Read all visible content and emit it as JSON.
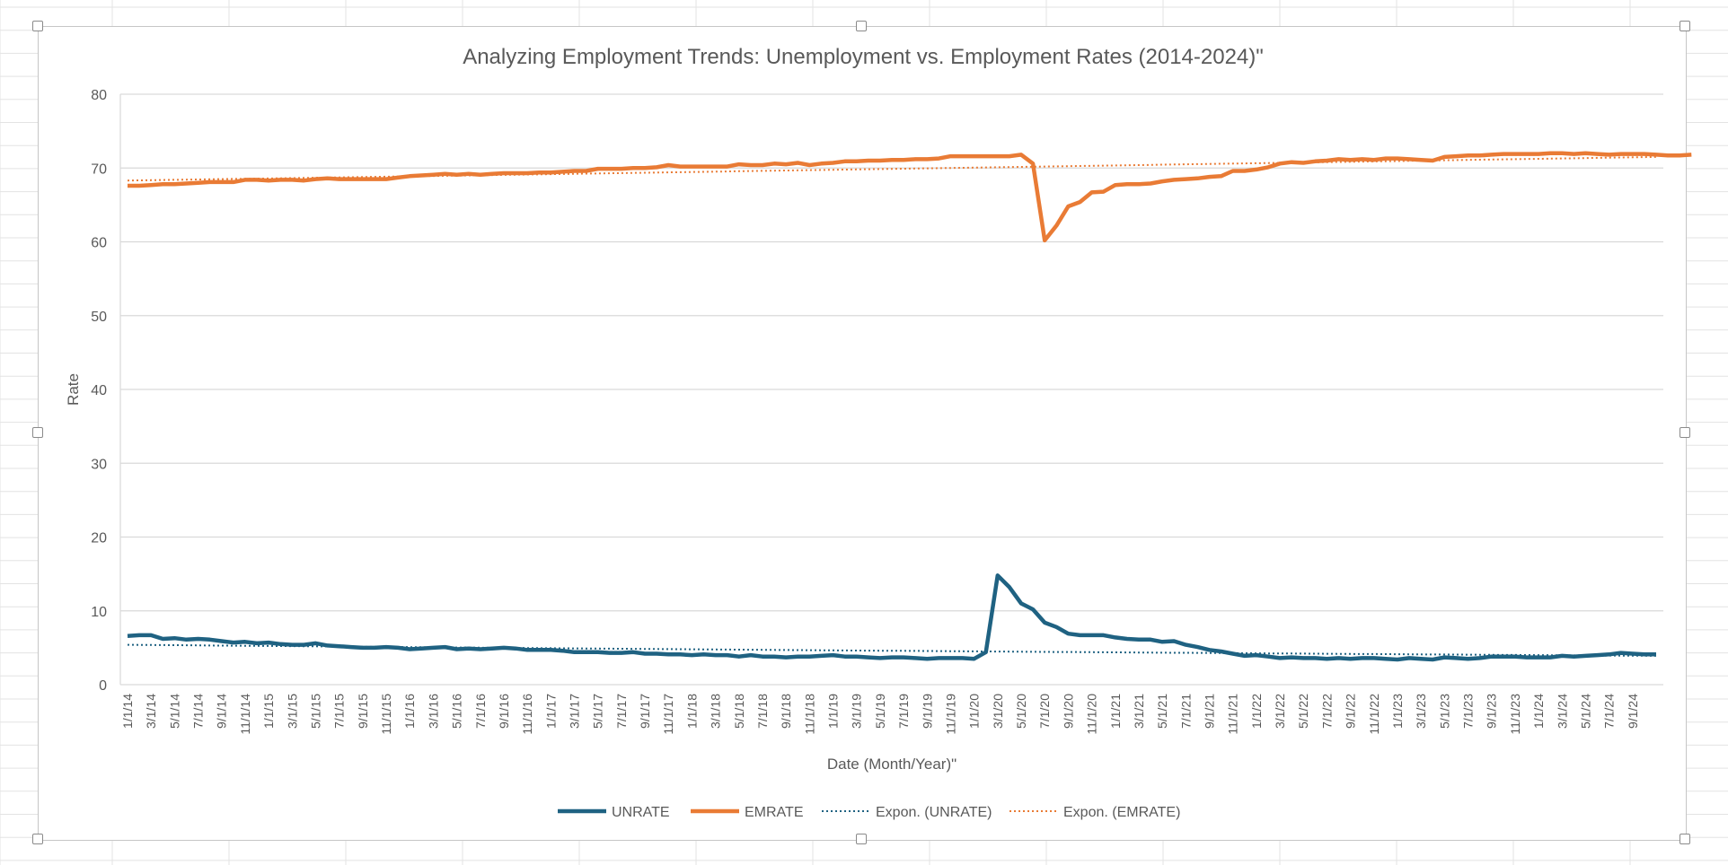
{
  "chart_data": {
    "type": "line",
    "title": "Analyzing Employment Trends: Unemployment vs. Employment Rates (2014-2024)\"",
    "xlabel": "Date (Month/Year)\"",
    "ylabel": "Rate",
    "ylim": [
      0,
      80
    ],
    "yticks": [
      "0",
      "10",
      "20",
      "30",
      "40",
      "50",
      "60",
      "70",
      "80"
    ],
    "grid": "horizontal",
    "legend_position": "bottom",
    "xtick_labels": [
      "1/1/14",
      "3/1/14",
      "5/1/14",
      "7/1/14",
      "9/1/14",
      "11/1/14",
      "1/1/15",
      "3/1/15",
      "5/1/15",
      "7/1/15",
      "9/1/15",
      "11/1/15",
      "1/1/16",
      "3/1/16",
      "5/1/16",
      "7/1/16",
      "9/1/16",
      "11/1/16",
      "1/1/17",
      "3/1/17",
      "5/1/17",
      "7/1/17",
      "9/1/17",
      "11/1/17",
      "1/1/18",
      "3/1/18",
      "5/1/18",
      "7/1/18",
      "9/1/18",
      "11/1/18",
      "1/1/19",
      "3/1/19",
      "5/1/19",
      "7/1/19",
      "9/1/19",
      "11/1/19",
      "1/1/20",
      "3/1/20",
      "5/1/20",
      "7/1/20",
      "9/1/20",
      "11/1/20",
      "1/1/21",
      "3/1/21",
      "5/1/21",
      "7/1/21",
      "9/1/21",
      "11/1/21",
      "1/1/22",
      "3/1/22",
      "5/1/22",
      "7/1/22",
      "9/1/22",
      "11/1/22",
      "1/1/23",
      "3/1/23",
      "5/1/23",
      "7/1/23",
      "9/1/23",
      "11/1/23",
      "1/1/24",
      "3/1/24",
      "5/1/24",
      "7/1/24",
      "9/1/24"
    ],
    "series": [
      {
        "name": "UNRATE",
        "color": "#1f6282",
        "style": "solid",
        "values": [
          6.6,
          6.7,
          6.7,
          6.2,
          6.3,
          6.1,
          6.2,
          6.1,
          5.9,
          5.7,
          5.8,
          5.6,
          5.7,
          5.5,
          5.4,
          5.4,
          5.6,
          5.3,
          5.2,
          5.1,
          5.0,
          5.0,
          5.1,
          5.0,
          4.8,
          4.9,
          5.0,
          5.1,
          4.8,
          4.9,
          4.8,
          4.9,
          5.0,
          4.9,
          4.7,
          4.7,
          4.7,
          4.6,
          4.4,
          4.4,
          4.4,
          4.3,
          4.3,
          4.4,
          4.2,
          4.2,
          4.1,
          4.1,
          4.0,
          4.1,
          4.0,
          4.0,
          3.8,
          4.0,
          3.8,
          3.8,
          3.7,
          3.8,
          3.8,
          3.9,
          4.0,
          3.8,
          3.8,
          3.7,
          3.6,
          3.7,
          3.7,
          3.6,
          3.5,
          3.6,
          3.6,
          3.6,
          3.5,
          4.4,
          14.8,
          13.2,
          11.0,
          10.2,
          8.4,
          7.8,
          6.9,
          6.7,
          6.7,
          6.7,
          6.4,
          6.2,
          6.1,
          6.1,
          5.8,
          5.9,
          5.4,
          5.1,
          4.7,
          4.5,
          4.2,
          3.9,
          4.0,
          3.8,
          3.6,
          3.7,
          3.6,
          3.6,
          3.5,
          3.6,
          3.5,
          3.6,
          3.6,
          3.5,
          3.4,
          3.6,
          3.5,
          3.4,
          3.7,
          3.6,
          3.5,
          3.6,
          3.8,
          3.8,
          3.8,
          3.7,
          3.7,
          3.7,
          3.9,
          3.8,
          3.9,
          4.0,
          4.1,
          4.3,
          4.2,
          4.1,
          4.1
        ],
        "trendline": {
          "name": "Expon. (UNRATE)",
          "style": "dotted",
          "start": 5.4,
          "end": 3.9
        }
      },
      {
        "name": "EMRATE",
        "color": "#e97b35",
        "style": "solid",
        "values": [
          67.6,
          67.6,
          67.7,
          67.8,
          67.8,
          67.9,
          68.0,
          68.1,
          68.1,
          68.1,
          68.4,
          68.4,
          68.3,
          68.4,
          68.4,
          68.3,
          68.5,
          68.6,
          68.5,
          68.5,
          68.5,
          68.5,
          68.5,
          68.7,
          68.9,
          69.0,
          69.1,
          69.2,
          69.1,
          69.2,
          69.1,
          69.2,
          69.3,
          69.3,
          69.3,
          69.4,
          69.4,
          69.5,
          69.6,
          69.6,
          69.9,
          69.9,
          69.9,
          70.0,
          70.0,
          70.1,
          70.4,
          70.2,
          70.2,
          70.2,
          70.2,
          70.2,
          70.5,
          70.4,
          70.4,
          70.6,
          70.5,
          70.7,
          70.4,
          70.6,
          70.7,
          70.9,
          70.9,
          71.0,
          71.0,
          71.1,
          71.1,
          71.2,
          71.2,
          71.3,
          71.6,
          71.6,
          71.6,
          71.6,
          71.6,
          71.6,
          71.8,
          70.6,
          60.2,
          62.2,
          64.8,
          65.4,
          66.7,
          66.8,
          67.7,
          67.8,
          67.8,
          67.9,
          68.2,
          68.4,
          68.5,
          68.6,
          68.8,
          68.9,
          69.6,
          69.6,
          69.8,
          70.1,
          70.6,
          70.8,
          70.7,
          70.9,
          71.0,
          71.2,
          71.1,
          71.2,
          71.1,
          71.3,
          71.3,
          71.2,
          71.1,
          71.0,
          71.5,
          71.6,
          71.7,
          71.7,
          71.8,
          71.9,
          71.9,
          71.9,
          71.9,
          72.0,
          72.0,
          71.9,
          72.0,
          71.9,
          71.8,
          71.9,
          71.9,
          71.9,
          71.8,
          71.7,
          71.7,
          71.8
        ],
        "trendline": {
          "name": "Expon. (EMRATE)",
          "style": "dotted",
          "start": 68.3,
          "end": 71.5
        }
      }
    ]
  }
}
